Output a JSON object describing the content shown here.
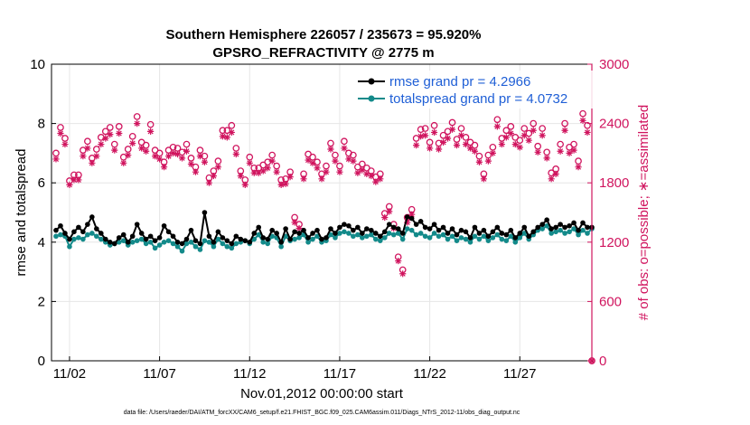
{
  "chart_data": {
    "type": "line",
    "title_line1": "Southern Hemisphere 226057 / 235673 = 95.920%",
    "title_line2": "GPSRO_REFRACTIVITY @ 2775 m",
    "xlabel": "Nov.01,2012 00:00:00 start",
    "ylabel_left": "rmse and totalspread",
    "ylabel_right": "# of obs: o=possible; ∗=assimilated",
    "x_tick_labels": [
      "11/02",
      "11/07",
      "11/12",
      "11/17",
      "11/22",
      "11/27"
    ],
    "x_tick_days": [
      2,
      7,
      12,
      17,
      22,
      27
    ],
    "xlim": [
      1.0,
      31.0
    ],
    "ylim_left": [
      0,
      10
    ],
    "y_ticks_left": [
      "0",
      "2",
      "4",
      "6",
      "8",
      "10"
    ],
    "ylim_right": [
      0,
      3000
    ],
    "y_ticks_right": [
      "0",
      "600",
      "1200",
      "1800",
      "2400",
      "3000"
    ],
    "grid": true,
    "legend_position": "top-right",
    "footer_text": "data file: /Users/raeder/DAI/ATM_forcXX/CAM6_setup/f.e21.FHIST_BGC.f09_025.CAM6assim.011/Diags_NTrS_2012-11/obs_diag_output.nc",
    "colors": {
      "rmse": "#000000",
      "totalspread": "#138a8a",
      "obs": "#d0145e",
      "legend_text": "#1f5fd6"
    },
    "series": [
      {
        "name": "rmse grand pr = 4.2966",
        "key": "rmse",
        "x": [
          1.25,
          1.5,
          1.75,
          2.0,
          2.25,
          2.5,
          2.75,
          3.0,
          3.25,
          3.5,
          3.75,
          4.0,
          4.25,
          4.5,
          4.75,
          5.0,
          5.25,
          5.5,
          5.75,
          6.0,
          6.25,
          6.5,
          6.75,
          7.0,
          7.25,
          7.5,
          7.75,
          8.0,
          8.25,
          8.5,
          8.75,
          9.0,
          9.25,
          9.5,
          9.75,
          10.0,
          10.25,
          10.5,
          10.75,
          11.0,
          11.25,
          11.5,
          11.75,
          12.0,
          12.25,
          12.5,
          12.75,
          13.0,
          13.25,
          13.5,
          13.75,
          14.0,
          14.25,
          14.5,
          14.75,
          15.0,
          15.25,
          15.5,
          15.75,
          16.0,
          16.25,
          16.5,
          16.75,
          17.0,
          17.25,
          17.5,
          17.75,
          18.0,
          18.25,
          18.5,
          18.75,
          19.0,
          19.25,
          19.5,
          19.75,
          20.0,
          20.25,
          20.5,
          20.75,
          21.0,
          21.25,
          21.5,
          21.75,
          22.0,
          22.25,
          22.5,
          22.75,
          23.0,
          23.25,
          23.5,
          23.75,
          24.0,
          24.25,
          24.5,
          24.75,
          25.0,
          25.25,
          25.5,
          25.75,
          26.0,
          26.25,
          26.5,
          26.75,
          27.0,
          27.25,
          27.5,
          27.75,
          28.0,
          28.25,
          28.5,
          28.75,
          29.0,
          29.25,
          29.5,
          29.75,
          30.0,
          30.25,
          30.5,
          30.75,
          31.0
        ],
        "values": [
          4.4,
          4.55,
          4.3,
          4.1,
          4.35,
          4.5,
          4.35,
          4.6,
          4.85,
          4.45,
          4.3,
          4.1,
          4.0,
          3.95,
          4.15,
          4.25,
          4.0,
          4.2,
          4.6,
          4.3,
          4.1,
          4.2,
          4.05,
          4.15,
          4.55,
          4.35,
          4.2,
          4.0,
          3.95,
          4.1,
          4.4,
          4.05,
          3.95,
          5.0,
          4.2,
          4.0,
          4.35,
          4.15,
          4.05,
          3.95,
          4.2,
          4.1,
          4.05,
          4.0,
          4.3,
          4.5,
          4.15,
          4.1,
          4.4,
          4.3,
          4.0,
          4.45,
          4.1,
          4.35,
          4.3,
          4.4,
          4.15,
          4.3,
          4.4,
          4.1,
          4.15,
          4.45,
          4.3,
          4.5,
          4.6,
          4.55,
          4.4,
          4.5,
          4.3,
          4.45,
          4.4,
          4.3,
          4.2,
          4.35,
          4.6,
          4.5,
          4.45,
          4.3,
          4.85,
          4.8,
          4.6,
          4.7,
          4.5,
          4.45,
          4.6,
          4.4,
          4.5,
          4.3,
          4.45,
          4.25,
          4.4,
          4.35,
          4.15,
          4.5,
          4.3,
          4.4,
          4.2,
          4.35,
          4.5,
          4.3,
          4.25,
          4.4,
          4.15,
          4.3,
          4.5,
          4.2,
          4.35,
          4.5,
          4.6,
          4.75,
          4.45,
          4.5,
          4.6,
          4.5,
          4.55,
          4.65,
          4.4,
          4.65,
          4.5,
          4.5
        ]
      },
      {
        "name": "totalspread grand pr = 4.0732",
        "key": "totalspread",
        "x": [
          1.25,
          1.5,
          1.75,
          2.0,
          2.25,
          2.5,
          2.75,
          3.0,
          3.25,
          3.5,
          3.75,
          4.0,
          4.25,
          4.5,
          4.75,
          5.0,
          5.25,
          5.5,
          5.75,
          6.0,
          6.25,
          6.5,
          6.75,
          7.0,
          7.25,
          7.5,
          7.75,
          8.0,
          8.25,
          8.5,
          8.75,
          9.0,
          9.25,
          9.5,
          9.75,
          10.0,
          10.25,
          10.5,
          10.75,
          11.0,
          11.25,
          11.5,
          11.75,
          12.0,
          12.25,
          12.5,
          12.75,
          13.0,
          13.25,
          13.5,
          13.75,
          14.0,
          14.25,
          14.5,
          14.75,
          15.0,
          15.25,
          15.5,
          15.75,
          16.0,
          16.25,
          16.5,
          16.75,
          17.0,
          17.25,
          17.5,
          17.75,
          18.0,
          18.25,
          18.5,
          18.75,
          19.0,
          19.25,
          19.5,
          19.75,
          20.0,
          20.25,
          20.5,
          20.75,
          21.0,
          21.25,
          21.5,
          21.75,
          22.0,
          22.25,
          22.5,
          22.75,
          23.0,
          23.25,
          23.5,
          23.75,
          24.0,
          24.25,
          24.5,
          24.75,
          25.0,
          25.25,
          25.5,
          25.75,
          26.0,
          26.25,
          26.5,
          26.75,
          27.0,
          27.25,
          27.5,
          27.75,
          28.0,
          28.25,
          28.5,
          28.75,
          29.0,
          29.25,
          29.5,
          29.75,
          30.0,
          30.25,
          30.5,
          30.75,
          31.0
        ],
        "values": [
          4.2,
          4.25,
          4.2,
          3.85,
          4.1,
          4.15,
          4.1,
          4.25,
          4.3,
          4.2,
          4.1,
          4.0,
          3.9,
          3.95,
          4.0,
          4.05,
          3.9,
          4.0,
          4.05,
          4.1,
          3.95,
          4.0,
          3.8,
          3.9,
          4.0,
          4.05,
          3.95,
          3.85,
          3.7,
          3.95,
          4.0,
          3.85,
          3.75,
          4.05,
          4.0,
          3.85,
          4.1,
          3.95,
          3.85,
          3.8,
          3.95,
          4.0,
          4.05,
          3.95,
          4.1,
          4.25,
          4.0,
          3.95,
          4.2,
          4.15,
          3.85,
          4.2,
          4.05,
          4.1,
          4.15,
          4.25,
          4.0,
          4.1,
          4.2,
          4.0,
          4.05,
          4.25,
          4.15,
          4.3,
          4.35,
          4.3,
          4.2,
          4.25,
          4.15,
          4.2,
          4.25,
          4.1,
          4.05,
          4.15,
          4.3,
          4.25,
          4.3,
          4.1,
          4.45,
          4.4,
          4.25,
          4.3,
          4.2,
          4.15,
          4.3,
          4.2,
          4.25,
          4.1,
          4.2,
          4.05,
          4.15,
          4.1,
          4.0,
          4.2,
          4.1,
          4.2,
          4.05,
          4.15,
          4.25,
          4.1,
          4.05,
          4.2,
          4.0,
          4.15,
          4.3,
          4.1,
          4.25,
          4.4,
          4.45,
          4.55,
          4.3,
          4.35,
          4.4,
          4.3,
          4.35,
          4.45,
          4.25,
          4.4,
          4.3,
          4.45
        ]
      },
      {
        "name": "possible",
        "key": "obs_possible",
        "axis": "right",
        "marker": "circle",
        "x": [
          1.25,
          1.5,
          1.75,
          2.0,
          2.25,
          2.5,
          2.75,
          3.0,
          3.25,
          3.5,
          3.75,
          4.0,
          4.25,
          4.5,
          4.75,
          5.0,
          5.25,
          5.5,
          5.75,
          6.0,
          6.25,
          6.5,
          6.75,
          7.0,
          7.25,
          7.5,
          7.75,
          8.0,
          8.25,
          8.5,
          8.75,
          9.0,
          9.25,
          9.5,
          9.75,
          10.0,
          10.25,
          10.5,
          10.75,
          11.0,
          11.25,
          11.5,
          11.75,
          12.0,
          12.25,
          12.5,
          12.75,
          13.0,
          13.25,
          13.5,
          13.75,
          14.0,
          14.25,
          14.5,
          14.75,
          15.0,
          15.25,
          15.5,
          15.75,
          16.0,
          16.25,
          16.5,
          16.75,
          17.0,
          17.25,
          17.5,
          17.75,
          18.0,
          18.25,
          18.5,
          18.75,
          19.0,
          19.25,
          19.5,
          19.75,
          20.0,
          20.25,
          20.5,
          20.75,
          21.0,
          21.25,
          21.5,
          21.75,
          22.0,
          22.25,
          22.5,
          22.75,
          23.0,
          23.25,
          23.5,
          23.75,
          24.0,
          24.25,
          24.5,
          24.75,
          25.0,
          25.25,
          25.5,
          25.75,
          26.0,
          26.25,
          26.5,
          26.75,
          27.0,
          27.25,
          27.5,
          27.75,
          28.0,
          28.25,
          28.5,
          28.75,
          29.0,
          29.25,
          29.5,
          29.75,
          30.0,
          30.25,
          30.5,
          30.75,
          31.0
        ],
        "values": [
          2100,
          2360,
          2250,
          1820,
          1880,
          1880,
          2130,
          2220,
          2050,
          2140,
          2260,
          2320,
          2360,
          2190,
          2370,
          2060,
          2140,
          2270,
          2470,
          2210,
          2180,
          2390,
          2130,
          2100,
          2010,
          2130,
          2160,
          2150,
          2110,
          2190,
          2050,
          1960,
          2130,
          2070,
          1850,
          1920,
          2020,
          2330,
          2330,
          2380,
          2150,
          1920,
          1830,
          2060,
          1950,
          1950,
          1980,
          2010,
          2080,
          1970,
          1830,
          1840,
          1910,
          1450,
          1380,
          1890,
          2090,
          2060,
          2010,
          1890,
          1970,
          2200,
          2080,
          1970,
          2220,
          2100,
          2080,
          1960,
          1990,
          1950,
          1920,
          1860,
          1890,
          1490,
          1560,
          1380,
          1050,
          920,
          1450,
          1530,
          2250,
          2340,
          2350,
          2210,
          2380,
          2200,
          2280,
          2320,
          2410,
          2240,
          2350,
          2260,
          2210,
          2180,
          2070,
          1890,
          2080,
          2160,
          2440,
          2250,
          2330,
          2370,
          2260,
          2230,
          2350,
          2300,
          2400,
          2170,
          2350,
          2110,
          1900,
          1940,
          2190,
          2400,
          2160,
          2190,
          2020,
          2500,
          2380,
          0
        ]
      },
      {
        "name": "assimilated",
        "key": "obs_assimilated",
        "axis": "right",
        "marker": "asterisk",
        "x": [
          1.25,
          1.5,
          1.75,
          2.0,
          2.25,
          2.5,
          2.75,
          3.0,
          3.25,
          3.5,
          3.75,
          4.0,
          4.25,
          4.5,
          4.75,
          5.0,
          5.25,
          5.5,
          5.75,
          6.0,
          6.25,
          6.5,
          6.75,
          7.0,
          7.25,
          7.5,
          7.75,
          8.0,
          8.25,
          8.5,
          8.75,
          9.0,
          9.25,
          9.5,
          9.75,
          10.0,
          10.25,
          10.5,
          10.75,
          11.0,
          11.25,
          11.5,
          11.75,
          12.0,
          12.25,
          12.5,
          12.75,
          13.0,
          13.25,
          13.5,
          13.75,
          14.0,
          14.25,
          14.5,
          14.75,
          15.0,
          15.25,
          15.5,
          15.75,
          16.0,
          16.25,
          16.5,
          16.75,
          17.0,
          17.25,
          17.5,
          17.75,
          18.0,
          18.25,
          18.5,
          18.75,
          19.0,
          19.25,
          19.5,
          19.75,
          20.0,
          20.25,
          20.5,
          20.75,
          21.0,
          21.25,
          21.5,
          21.75,
          22.0,
          22.25,
          22.5,
          22.75,
          23.0,
          23.25,
          23.5,
          23.75,
          24.0,
          24.25,
          24.5,
          24.75,
          25.0,
          25.25,
          25.5,
          25.75,
          26.0,
          26.25,
          26.5,
          26.75,
          27.0,
          27.25,
          27.5,
          27.75,
          28.0,
          28.25,
          28.5,
          28.75,
          29.0,
          29.25,
          29.5,
          29.75,
          30.0,
          30.25,
          30.5,
          30.75,
          31.0
        ],
        "values": [
          2040,
          2300,
          2190,
          1780,
          1830,
          1830,
          2070,
          2150,
          2000,
          2070,
          2190,
          2250,
          2290,
          2130,
          2300,
          2000,
          2080,
          2200,
          2400,
          2150,
          2120,
          2320,
          2070,
          2040,
          1960,
          2070,
          2100,
          2090,
          2050,
          2120,
          1990,
          1910,
          2070,
          2010,
          1800,
          1870,
          1960,
          2270,
          2260,
          2310,
          2090,
          1870,
          1780,
          2000,
          1900,
          1900,
          1920,
          1950,
          2020,
          1910,
          1780,
          1790,
          1860,
          1400,
          1340,
          1840,
          2030,
          2000,
          1950,
          1840,
          1910,
          2140,
          2020,
          1910,
          2150,
          2040,
          2020,
          1900,
          1930,
          1890,
          1870,
          1810,
          1840,
          1450,
          1510,
          1340,
          1010,
          880,
          1400,
          1480,
          2180,
          2270,
          2280,
          2150,
          2310,
          2140,
          2210,
          2250,
          2340,
          2180,
          2280,
          2190,
          2150,
          2120,
          2010,
          1840,
          2020,
          2100,
          2370,
          2190,
          2260,
          2300,
          2190,
          2160,
          2280,
          2230,
          2330,
          2110,
          2280,
          2050,
          1840,
          1890,
          2120,
          2330,
          2100,
          2130,
          1960,
          2430,
          2310,
          0
        ]
      }
    ]
  }
}
